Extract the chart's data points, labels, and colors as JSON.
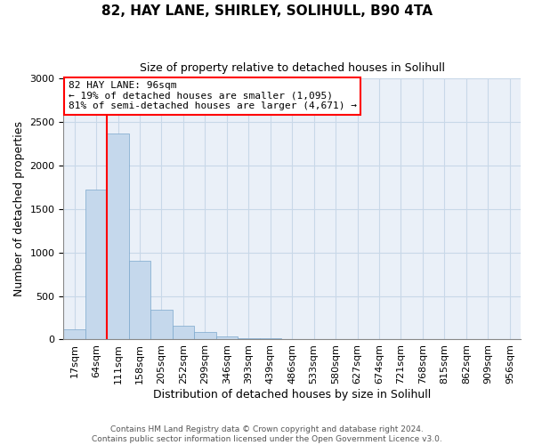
{
  "title": "82, HAY LANE, SHIRLEY, SOLIHULL, B90 4TA",
  "subtitle": "Size of property relative to detached houses in Solihull",
  "xlabel": "Distribution of detached houses by size in Solihull",
  "ylabel": "Number of detached properties",
  "bar_labels": [
    "17sqm",
    "64sqm",
    "111sqm",
    "158sqm",
    "205sqm",
    "252sqm",
    "299sqm",
    "346sqm",
    "393sqm",
    "439sqm",
    "486sqm",
    "533sqm",
    "580sqm",
    "627sqm",
    "674sqm",
    "721sqm",
    "768sqm",
    "815sqm",
    "862sqm",
    "909sqm",
    "956sqm"
  ],
  "bar_values": [
    120,
    1720,
    2370,
    910,
    345,
    155,
    85,
    35,
    20,
    10,
    5,
    2,
    1,
    0,
    0,
    0,
    0,
    0,
    0,
    0,
    0
  ],
  "bar_color": "#c5d8ec",
  "bar_edge_color": "#7ba7cc",
  "vline_x": 1.5,
  "vline_color": "red",
  "annotation_text": "82 HAY LANE: 96sqm\n← 19% of detached houses are smaller (1,095)\n81% of semi-detached houses are larger (4,671) →",
  "annotation_box_color": "white",
  "annotation_box_edgecolor": "red",
  "ylim": [
    0,
    3000
  ],
  "yticks": [
    0,
    500,
    1000,
    1500,
    2000,
    2500,
    3000
  ],
  "footer_line1": "Contains HM Land Registry data © Crown copyright and database right 2024.",
  "footer_line2": "Contains public sector information licensed under the Open Government Licence v3.0.",
  "figsize": [
    6.0,
    5.0
  ],
  "dpi": 100,
  "title_fontsize": 11,
  "subtitle_fontsize": 9,
  "ylabel_fontsize": 9,
  "xlabel_fontsize": 9,
  "tick_fontsize": 8,
  "annotation_fontsize": 8,
  "footer_fontsize": 6.5,
  "grid_color": "#c8d8e8",
  "bg_color": "#eaf0f8"
}
